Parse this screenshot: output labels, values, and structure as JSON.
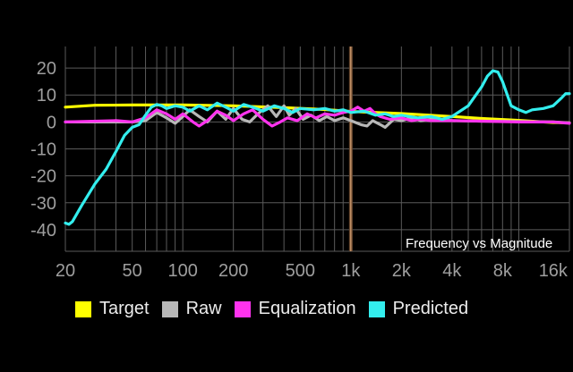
{
  "chart_data": {
    "type": "line",
    "title": "Frequency vs Magnitude",
    "x_scale": "log",
    "xlim": [
      20,
      20000
    ],
    "ylim": [
      -48,
      28
    ],
    "grid": true,
    "y_ticks": [
      {
        "value": 20,
        "label": "20"
      },
      {
        "value": 10,
        "label": "10"
      },
      {
        "value": 0,
        "label": "0"
      },
      {
        "value": -10,
        "label": "-10"
      },
      {
        "value": -20,
        "label": "-20"
      },
      {
        "value": -30,
        "label": "-30"
      },
      {
        "value": -40,
        "label": "-40"
      }
    ],
    "x_ticks": [
      {
        "value": 20,
        "label": "20"
      },
      {
        "value": 50,
        "label": "50"
      },
      {
        "value": 100,
        "label": "100"
      },
      {
        "value": 200,
        "label": "200"
      },
      {
        "value": 500,
        "label": "500"
      },
      {
        "value": 1000,
        "label": "1k"
      },
      {
        "value": 2000,
        "label": "2k"
      },
      {
        "value": 4000,
        "label": "4k"
      },
      {
        "value": 8000,
        "label": "8k"
      },
      {
        "value": 16000,
        "label": "16k"
      }
    ],
    "x_grid": [
      20,
      30,
      40,
      50,
      60,
      70,
      80,
      90,
      100,
      200,
      300,
      400,
      500,
      600,
      700,
      800,
      900,
      1000,
      2000,
      3000,
      4000,
      5000,
      6000,
      7000,
      8000,
      9000,
      10000,
      20000
    ],
    "marker_frequency": 1000,
    "legend_position": "bottom",
    "series": [
      {
        "name": "Target",
        "color": "#ffff00",
        "points": [
          [
            20,
            5.5
          ],
          [
            30,
            6.2
          ],
          [
            50,
            6.3
          ],
          [
            100,
            6.3
          ],
          [
            200,
            6.0
          ],
          [
            400,
            5.3
          ],
          [
            700,
            4.6
          ],
          [
            1000,
            3.9
          ],
          [
            2000,
            3.1
          ],
          [
            4000,
            2.0
          ],
          [
            6000,
            1.3
          ],
          [
            10000,
            0.6
          ],
          [
            14000,
            0.0
          ],
          [
            16000,
            -0.2
          ],
          [
            20000,
            -0.3
          ]
        ]
      },
      {
        "name": "Raw",
        "color": "#b8b8b8",
        "points": [
          [
            20,
            0.0
          ],
          [
            50,
            0.0
          ],
          [
            60,
            0.5
          ],
          [
            70,
            3.5
          ],
          [
            80,
            1.5
          ],
          [
            90,
            -0.5
          ],
          [
            100,
            2.0
          ],
          [
            110,
            4.5
          ],
          [
            125,
            2.0
          ],
          [
            140,
            0.0
          ],
          [
            160,
            4.0
          ],
          [
            180,
            1.0
          ],
          [
            200,
            5.0
          ],
          [
            225,
            1.0
          ],
          [
            250,
            0.0
          ],
          [
            280,
            3.0
          ],
          [
            320,
            6.0
          ],
          [
            360,
            2.0
          ],
          [
            400,
            6.0
          ],
          [
            430,
            2.5
          ],
          [
            470,
            5.0
          ],
          [
            520,
            1.0
          ],
          [
            580,
            2.5
          ],
          [
            650,
            0.5
          ],
          [
            720,
            2.0
          ],
          [
            800,
            0.5
          ],
          [
            900,
            1.5
          ],
          [
            1000,
            0.5
          ],
          [
            1150,
            -1.0
          ],
          [
            1250,
            -1.5
          ],
          [
            1350,
            0.5
          ],
          [
            1500,
            -1.0
          ],
          [
            1600,
            -2.0
          ],
          [
            1800,
            1.0
          ],
          [
            2000,
            0.5
          ],
          [
            2300,
            1.5
          ],
          [
            2600,
            0.5
          ],
          [
            3000,
            1.0
          ],
          [
            4000,
            0.5
          ],
          [
            6000,
            0.3
          ],
          [
            10000,
            0.2
          ],
          [
            16000,
            0.0
          ],
          [
            20000,
            -0.3
          ]
        ]
      },
      {
        "name": "Equalization",
        "color": "#ff33ee",
        "points": [
          [
            20,
            0.0
          ],
          [
            40,
            0.5
          ],
          [
            50,
            0.0
          ],
          [
            60,
            1.5
          ],
          [
            70,
            4.5
          ],
          [
            80,
            3.0
          ],
          [
            90,
            1.0
          ],
          [
            100,
            3.0
          ],
          [
            115,
            0.0
          ],
          [
            125,
            -1.5
          ],
          [
            140,
            0.5
          ],
          [
            160,
            4.0
          ],
          [
            180,
            2.5
          ],
          [
            200,
            0.5
          ],
          [
            230,
            3.0
          ],
          [
            260,
            4.5
          ],
          [
            300,
            1.0
          ],
          [
            340,
            -1.5
          ],
          [
            380,
            0.0
          ],
          [
            420,
            1.5
          ],
          [
            480,
            0.5
          ],
          [
            550,
            3.0
          ],
          [
            620,
            1.5
          ],
          [
            700,
            3.0
          ],
          [
            800,
            2.5
          ],
          [
            900,
            3.5
          ],
          [
            1000,
            4.0
          ],
          [
            1100,
            5.5
          ],
          [
            1200,
            4.0
          ],
          [
            1300,
            5.0
          ],
          [
            1400,
            3.0
          ],
          [
            1500,
            2.0
          ],
          [
            1700,
            1.0
          ],
          [
            2000,
            1.5
          ],
          [
            2300,
            0.5
          ],
          [
            2600,
            1.0
          ],
          [
            3000,
            0.5
          ],
          [
            4000,
            0.5
          ],
          [
            6000,
            0.3
          ],
          [
            10000,
            0.0
          ],
          [
            16000,
            0.0
          ],
          [
            20000,
            -0.5
          ]
        ]
      },
      {
        "name": "Predicted",
        "color": "#33eeee",
        "points": [
          [
            20,
            -37.5
          ],
          [
            21,
            -38.0
          ],
          [
            22,
            -37.0
          ],
          [
            25,
            -31.0
          ],
          [
            30,
            -23.0
          ],
          [
            35,
            -17.5
          ],
          [
            40,
            -11.0
          ],
          [
            45,
            -5.0
          ],
          [
            50,
            -2.0
          ],
          [
            55,
            -1.0
          ],
          [
            60,
            2.5
          ],
          [
            65,
            5.5
          ],
          [
            70,
            6.5
          ],
          [
            75,
            6.0
          ],
          [
            80,
            5.0
          ],
          [
            90,
            6.0
          ],
          [
            100,
            5.5
          ],
          [
            110,
            4.0
          ],
          [
            125,
            6.0
          ],
          [
            140,
            4.5
          ],
          [
            160,
            7.0
          ],
          [
            180,
            5.5
          ],
          [
            200,
            4.0
          ],
          [
            230,
            6.5
          ],
          [
            260,
            5.5
          ],
          [
            300,
            4.0
          ],
          [
            350,
            6.0
          ],
          [
            400,
            5.0
          ],
          [
            450,
            3.5
          ],
          [
            500,
            5.0
          ],
          [
            600,
            4.5
          ],
          [
            700,
            5.0
          ],
          [
            800,
            4.0
          ],
          [
            900,
            4.5
          ],
          [
            1000,
            3.5
          ],
          [
            1200,
            4.0
          ],
          [
            1400,
            2.5
          ],
          [
            1600,
            3.0
          ],
          [
            1800,
            2.0
          ],
          [
            2000,
            2.5
          ],
          [
            2500,
            1.5
          ],
          [
            3000,
            2.0
          ],
          [
            3500,
            1.0
          ],
          [
            4000,
            2.0
          ],
          [
            5000,
            6.0
          ],
          [
            6000,
            13.0
          ],
          [
            6500,
            17.0
          ],
          [
            7000,
            19.0
          ],
          [
            7500,
            18.5
          ],
          [
            8000,
            15.0
          ],
          [
            9000,
            6.0
          ],
          [
            10000,
            4.5
          ],
          [
            11000,
            3.5
          ],
          [
            12000,
            4.5
          ],
          [
            14000,
            5.0
          ],
          [
            16000,
            6.0
          ],
          [
            18000,
            9.0
          ],
          [
            19000,
            10.5
          ],
          [
            20000,
            10.5
          ]
        ]
      }
    ]
  }
}
